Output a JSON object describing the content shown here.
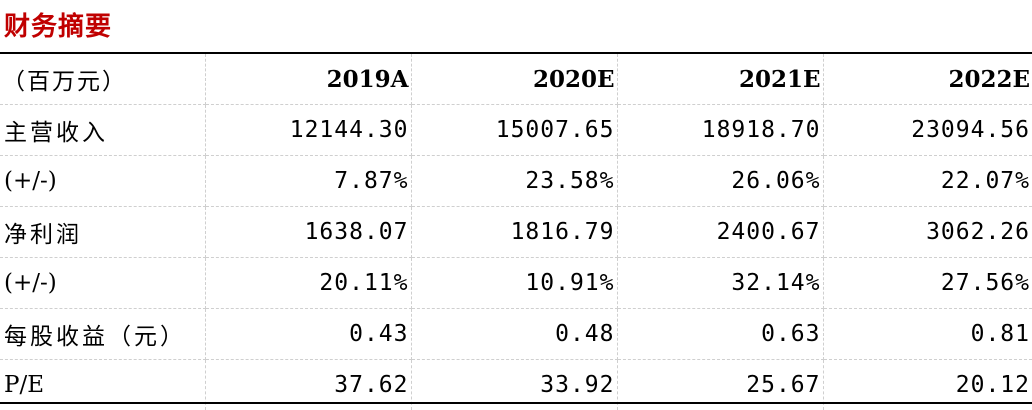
{
  "title": "财务摘要",
  "header": {
    "label": "（百万元）",
    "years": [
      "2019A",
      "2020E",
      "2021E",
      "2022E"
    ]
  },
  "rows": [
    {
      "label": "主营收入",
      "values": [
        "12144.30",
        "15007.65",
        "18918.70",
        "23094.56"
      ]
    },
    {
      "label": "(+/-)",
      "values": [
        "7.87%",
        "23.58%",
        "26.06%",
        "22.07%"
      ]
    },
    {
      "label": "净利润",
      "values": [
        "1638.07",
        "1816.79",
        "2400.67",
        "3062.26"
      ]
    },
    {
      "label": "(+/-)",
      "values": [
        "20.11%",
        "10.91%",
        "32.14%",
        "27.56%"
      ]
    },
    {
      "label": "每股收益（元）",
      "values": [
        "0.43",
        "0.48",
        "0.63",
        "0.81"
      ]
    },
    {
      "label": "P/E",
      "values": [
        "37.62",
        "33.92",
        "25.67",
        "20.12"
      ]
    }
  ],
  "colors": {
    "title": "#c00000",
    "rule": "#000000",
    "grid": "#cfcfcf"
  }
}
